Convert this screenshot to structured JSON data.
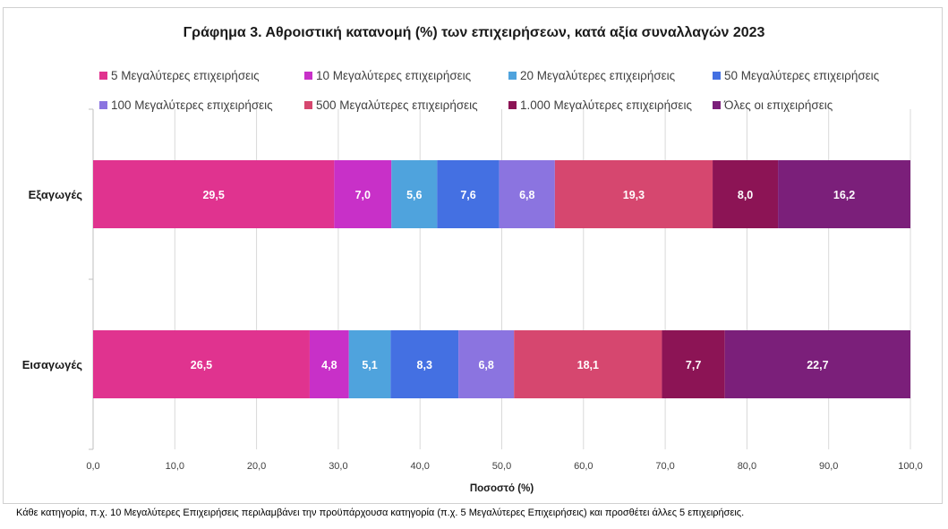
{
  "chart_data": {
    "type": "bar",
    "orientation": "horizontal",
    "stacked": true,
    "title": "Γράφημα 3. Αθροιστική κατανομή (%) των επιχειρήσεων, κατά αξία συναλλαγών 2023",
    "xlabel": "Ποσοστό (%)",
    "ylabel": "",
    "xlim": [
      0,
      100
    ],
    "x_ticks": [
      "0,0",
      "10,0",
      "20,0",
      "30,0",
      "40,0",
      "50,0",
      "60,0",
      "70,0",
      "80,0",
      "90,0",
      "100,0"
    ],
    "categories": [
      "Εξαγωγές",
      "Εισαγωγές"
    ],
    "series": [
      {
        "name": "5 Μεγαλύτερες επιχειρήσεις",
        "color": "#e0338f",
        "values": [
          29.5,
          26.5
        ],
        "labels": [
          "29,5",
          "26,5"
        ]
      },
      {
        "name": "10 Μεγαλύτερες επιχειρήσεις",
        "color": "#c830c8",
        "values": [
          7.0,
          4.8
        ],
        "labels": [
          "7,0",
          "4,8"
        ]
      },
      {
        "name": "20 Μεγαλύτερες επιχειρήσεις",
        "color": "#4fa3dd",
        "values": [
          5.6,
          5.1
        ],
        "labels": [
          "5,6",
          "5,1"
        ]
      },
      {
        "name": "50 Μεγαλύτερες επιχειρήσεις",
        "color": "#4470e2",
        "values": [
          7.6,
          8.3
        ],
        "labels": [
          "7,6",
          "8,3"
        ]
      },
      {
        "name": "100 Μεγαλύτερες επιχειρήσεις",
        "color": "#8b74e0",
        "values": [
          6.8,
          6.8
        ],
        "labels": [
          "6,8",
          "6,8"
        ]
      },
      {
        "name": "500 Μεγαλύτερες επιχειρήσεις",
        "color": "#d6476f",
        "values": [
          19.3,
          18.1
        ],
        "labels": [
          "19,3",
          "18,1"
        ]
      },
      {
        "name": "1.000 Μεγαλύτερες επιχειρήσεις",
        "color": "#8c1455",
        "values": [
          8.0,
          7.7
        ],
        "labels": [
          "8,0",
          "7,7"
        ]
      },
      {
        "name": "Όλες οι επιχειρήσεις",
        "color": "#7b1f7a",
        "values": [
          16.2,
          22.7
        ],
        "labels": [
          "16,2",
          "22,7"
        ]
      }
    ],
    "grid": true,
    "legend_position": "top"
  },
  "note": "Κάθε κατηγορία, π.χ. 10 Μεγαλύτερες Επιχειρήσεις περιλαμβάνει την προϋπάρχουσα κατηγορία (π.χ. 5 Μεγαλύτερες Επιχειρήσεις) και προσθέτει άλλες 5 επιχειρήσεις."
}
